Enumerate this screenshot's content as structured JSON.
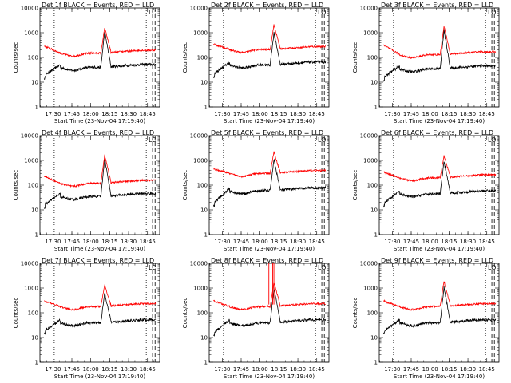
{
  "chart_data": [
    {
      "type": "line",
      "panel": "det1f",
      "title": "Det 1f BLACK = Events, RED = LLD",
      "corner_label": "LO",
      "ylabel": "Counts/sec",
      "xlabel": "Start Time (23-Nov-04 17:19:40)",
      "x_tick_labels": [
        "17:30",
        "17:45",
        "18:00",
        "18:15",
        "18:30",
        "18:45"
      ],
      "y_tick_labels": [
        "10000",
        "1000",
        "100",
        "10",
        "1"
      ],
      "ylim": [
        1,
        10000
      ],
      "yscale": "log",
      "series": [
        {
          "name": "Events",
          "color": "#000000",
          "bg": 40,
          "start": 14,
          "peak": 1150
        },
        {
          "name": "LLD",
          "color": "#ff0000",
          "bg": 150,
          "start": 290,
          "peak": 1600
        }
      ],
      "vlines": {
        "dotted_times": [
          "17:31",
          "18:44"
        ],
        "dashed_times": [
          "18:49",
          "18:51"
        ]
      }
    },
    {
      "type": "line",
      "panel": "det2f",
      "title": "Det 2f BLACK = Events, RED = LLD",
      "corner_label": "LO",
      "ylabel": "Counts/sec",
      "xlabel": "Start Time (23-Nov-04 17:19:40)",
      "x_tick_labels": [
        "17:30",
        "17:45",
        "18:00",
        "18:15",
        "18:30",
        "18:45"
      ],
      "y_tick_labels": [
        "10000",
        "1000",
        "100",
        "10",
        "1"
      ],
      "ylim": [
        1,
        10000
      ],
      "yscale": "log",
      "series": [
        {
          "name": "Events",
          "color": "#000000",
          "bg": 50,
          "start": 16,
          "peak": 1000
        },
        {
          "name": "LLD",
          "color": "#ff0000",
          "bg": 210,
          "start": 340,
          "peak": 2100
        }
      ],
      "vlines": {
        "dotted_times": [
          "17:31",
          "18:44"
        ],
        "dashed_times": [
          "18:49",
          "18:51"
        ]
      }
    },
    {
      "type": "line",
      "panel": "det3f",
      "title": "Det 3f BLACK = Events, RED = LLD",
      "corner_label": "LO",
      "ylabel": "Counts/sec",
      "xlabel": "Start Time (23-Nov-04 17:19:40)",
      "x_tick_labels": [
        "17:30",
        "17:45",
        "18:00",
        "18:15",
        "18:30",
        "18:45"
      ],
      "y_tick_labels": [
        "10000",
        "1000",
        "100",
        "10",
        "1"
      ],
      "ylim": [
        1,
        10000
      ],
      "yscale": "log",
      "series": [
        {
          "name": "Events",
          "color": "#000000",
          "bg": 35,
          "start": 12,
          "peak": 1300
        },
        {
          "name": "LLD",
          "color": "#ff0000",
          "bg": 130,
          "start": 320,
          "peak": 1900
        }
      ],
      "vlines": {
        "dotted_times": [
          "17:31",
          "18:44"
        ],
        "dashed_times": [
          "18:49",
          "18:51"
        ]
      }
    },
    {
      "type": "line",
      "panel": "det4f",
      "title": "Det 4f BLACK = Events, RED = LLD",
      "corner_label": "LO",
      "ylabel": "Counts/sec",
      "xlabel": "Start Time (23-Nov-04 17:19:40)",
      "x_tick_labels": [
        "17:30",
        "17:45",
        "18:00",
        "18:15",
        "18:30",
        "18:45"
      ],
      "y_tick_labels": [
        "10000",
        "1000",
        "100",
        "10",
        "1"
      ],
      "ylim": [
        1,
        10000
      ],
      "yscale": "log",
      "series": [
        {
          "name": "Events",
          "color": "#000000",
          "bg": 35,
          "start": 12,
          "peak": 1200
        },
        {
          "name": "LLD",
          "color": "#ff0000",
          "bg": 120,
          "start": 230,
          "peak": 1700
        }
      ],
      "vlines": {
        "dotted_times": [
          "17:31",
          "18:44"
        ],
        "dashed_times": [
          "18:49",
          "18:51"
        ]
      }
    },
    {
      "type": "line",
      "panel": "det5f",
      "title": "Det 5f BLACK = Events, RED = LLD",
      "corner_label": "LO",
      "ylabel": "Counts/sec",
      "xlabel": "Start Time (23-Nov-04 17:19:40)",
      "x_tick_labels": [
        "17:30",
        "17:45",
        "18:00",
        "18:15",
        "18:30",
        "18:45"
      ],
      "y_tick_labels": [
        "10000",
        "1000",
        "100",
        "10",
        "1"
      ],
      "ylim": [
        1,
        10000
      ],
      "yscale": "log",
      "series": [
        {
          "name": "Events",
          "color": "#000000",
          "bg": 60,
          "start": 14,
          "peak": 1100
        },
        {
          "name": "LLD",
          "color": "#ff0000",
          "bg": 300,
          "start": 450,
          "peak": 2200
        }
      ],
      "vlines": {
        "dotted_times": [
          "17:31",
          "18:44"
        ],
        "dashed_times": [
          "18:49",
          "18:51"
        ]
      }
    },
    {
      "type": "line",
      "panel": "det6f",
      "title": "Det 6f BLACK = Events, RED = LLD",
      "corner_label": "LO",
      "ylabel": "Counts/sec",
      "xlabel": "Start Time (23-Nov-04 17:19:40)",
      "x_tick_labels": [
        "17:30",
        "17:45",
        "18:00",
        "18:15",
        "18:30",
        "18:45"
      ],
      "y_tick_labels": [
        "10000",
        "1000",
        "100",
        "10",
        "1"
      ],
      "ylim": [
        1,
        10000
      ],
      "yscale": "log",
      "series": [
        {
          "name": "Events",
          "color": "#000000",
          "bg": 45,
          "start": 14,
          "peak": 900
        },
        {
          "name": "LLD",
          "color": "#ff0000",
          "bg": 200,
          "start": 340,
          "peak": 1600
        }
      ],
      "vlines": {
        "dotted_times": [
          "17:31",
          "18:44"
        ],
        "dashed_times": [
          "18:49",
          "18:51"
        ]
      }
    },
    {
      "type": "line",
      "panel": "det7f",
      "title": "Det 7f BLACK = Events, RED = LLD",
      "corner_label": "LO",
      "ylabel": "Counts/sec",
      "xlabel": "Start Time (23-Nov-04 17:19:40)",
      "x_tick_labels": [
        "17:30",
        "17:45",
        "18:00",
        "18:15",
        "18:30",
        "18:45"
      ],
      "y_tick_labels": [
        "10000",
        "1000",
        "100",
        "10",
        "1"
      ],
      "ylim": [
        1,
        10000
      ],
      "yscale": "log",
      "series": [
        {
          "name": "Events",
          "color": "#000000",
          "bg": 40,
          "start": 14,
          "peak": 650
        },
        {
          "name": "LLD",
          "color": "#ff0000",
          "bg": 180,
          "start": 300,
          "peak": 1300
        }
      ],
      "vlines": {
        "dotted_times": [
          "17:31",
          "18:44"
        ],
        "dashed_times": [
          "18:49",
          "18:51"
        ]
      }
    },
    {
      "type": "line",
      "panel": "det8f",
      "title": "Det 8f BLACK = Events, RED = LLD",
      "corner_label": "LO",
      "ylabel": "Counts/sec",
      "xlabel": "Start Time (23-Nov-04 17:19:40)",
      "x_tick_labels": [
        "17:30",
        "17:45",
        "18:00",
        "18:15",
        "18:30",
        "18:45"
      ],
      "y_tick_labels": [
        "10000",
        "1000",
        "100",
        "10",
        "1"
      ],
      "ylim": [
        1,
        10000
      ],
      "yscale": "log",
      "series": [
        {
          "name": "Events",
          "color": "#000000",
          "bg": 40,
          "start": 12,
          "peak": 1000
        },
        {
          "name": "LLD",
          "color": "#ff0000",
          "bg": 180,
          "start": 300,
          "peak": 1700,
          "spikes": [
            "18:07",
            "18:10",
            "18:11"
          ]
        }
      ],
      "vlines": {
        "dotted_times": [
          "17:31",
          "18:44"
        ],
        "dashed_times": [
          "18:49",
          "18:51"
        ]
      }
    },
    {
      "type": "line",
      "panel": "det9f",
      "title": "Det 9f BLACK = Events, RED = LLD",
      "corner_label": "LO",
      "ylabel": "Counts/sec",
      "xlabel": "Start Time (23-Nov-04 17:19:40)",
      "x_tick_labels": [
        "17:30",
        "17:45",
        "18:00",
        "18:15",
        "18:30",
        "18:45"
      ],
      "y_tick_labels": [
        "10000",
        "1000",
        "100",
        "10",
        "1"
      ],
      "ylim": [
        1,
        10000
      ],
      "yscale": "log",
      "series": [
        {
          "name": "Events",
          "color": "#000000",
          "bg": 40,
          "start": 14,
          "peak": 1100
        },
        {
          "name": "LLD",
          "color": "#ff0000",
          "bg": 180,
          "start": 300,
          "peak": 1900
        }
      ],
      "vlines": {
        "dotted_times": [
          "17:31",
          "18:44"
        ],
        "dashed_times": [
          "18:49",
          "18:51"
        ]
      }
    }
  ],
  "x_time_range": [
    "17:19:40",
    "18:54:40"
  ]
}
